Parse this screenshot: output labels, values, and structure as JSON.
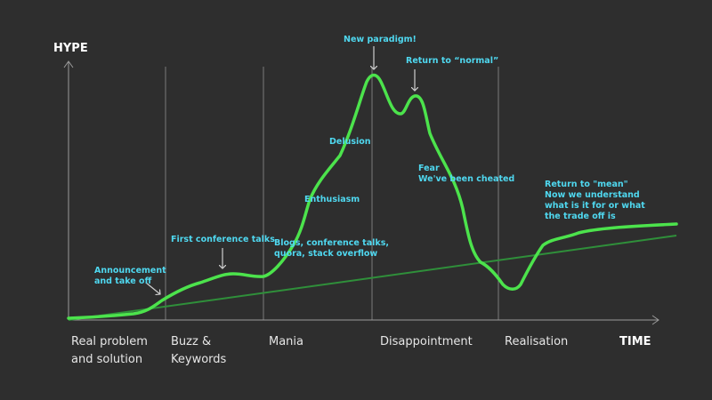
{
  "colors": {
    "background": "#2e2e2e",
    "hype_curve": "#4ce34c",
    "trend_line": "#2f8f3a",
    "annotation_text": "#4fd8f0",
    "phase_divider": "#7a7a7a",
    "axis": "#9a9a9a",
    "label_text": "#e6e6e6"
  },
  "axes": {
    "y_label": "HYPE",
    "x_label": "TIME"
  },
  "phases": [
    {
      "line1": "Real problem",
      "line2": "and solution"
    },
    {
      "line1": "Buzz &",
      "line2": "Keywords"
    },
    {
      "line1": "Mania",
      "line2": ""
    },
    {
      "line1": "Disappointment",
      "line2": ""
    },
    {
      "line1": "Realisation",
      "line2": ""
    }
  ],
  "annotations": {
    "announcement": [
      "Announcement",
      "and take off"
    ],
    "first_conference": [
      "First conference talks"
    ],
    "blogs": [
      "Blogs, conference talks,",
      "quora, stack overflow"
    ],
    "enthusiasm": [
      "Enthusiasm"
    ],
    "delusion": [
      "Delusion"
    ],
    "new_paradigm": [
      "New paradigm!"
    ],
    "return_normal": [
      "Return to “normal”"
    ],
    "fear": [
      "Fear",
      "We've been cheated"
    ],
    "return_mean": [
      "Return to \"mean\"",
      "Now we understand",
      "what is it for or what",
      "the trade off is"
    ]
  },
  "icons": {
    "arrow_announcement": "arrow-down-right-icon",
    "arrow_first_conference": "arrow-down-icon",
    "arrow_new_paradigm": "arrow-down-icon",
    "arrow_return_normal": "arrow-down-icon"
  }
}
